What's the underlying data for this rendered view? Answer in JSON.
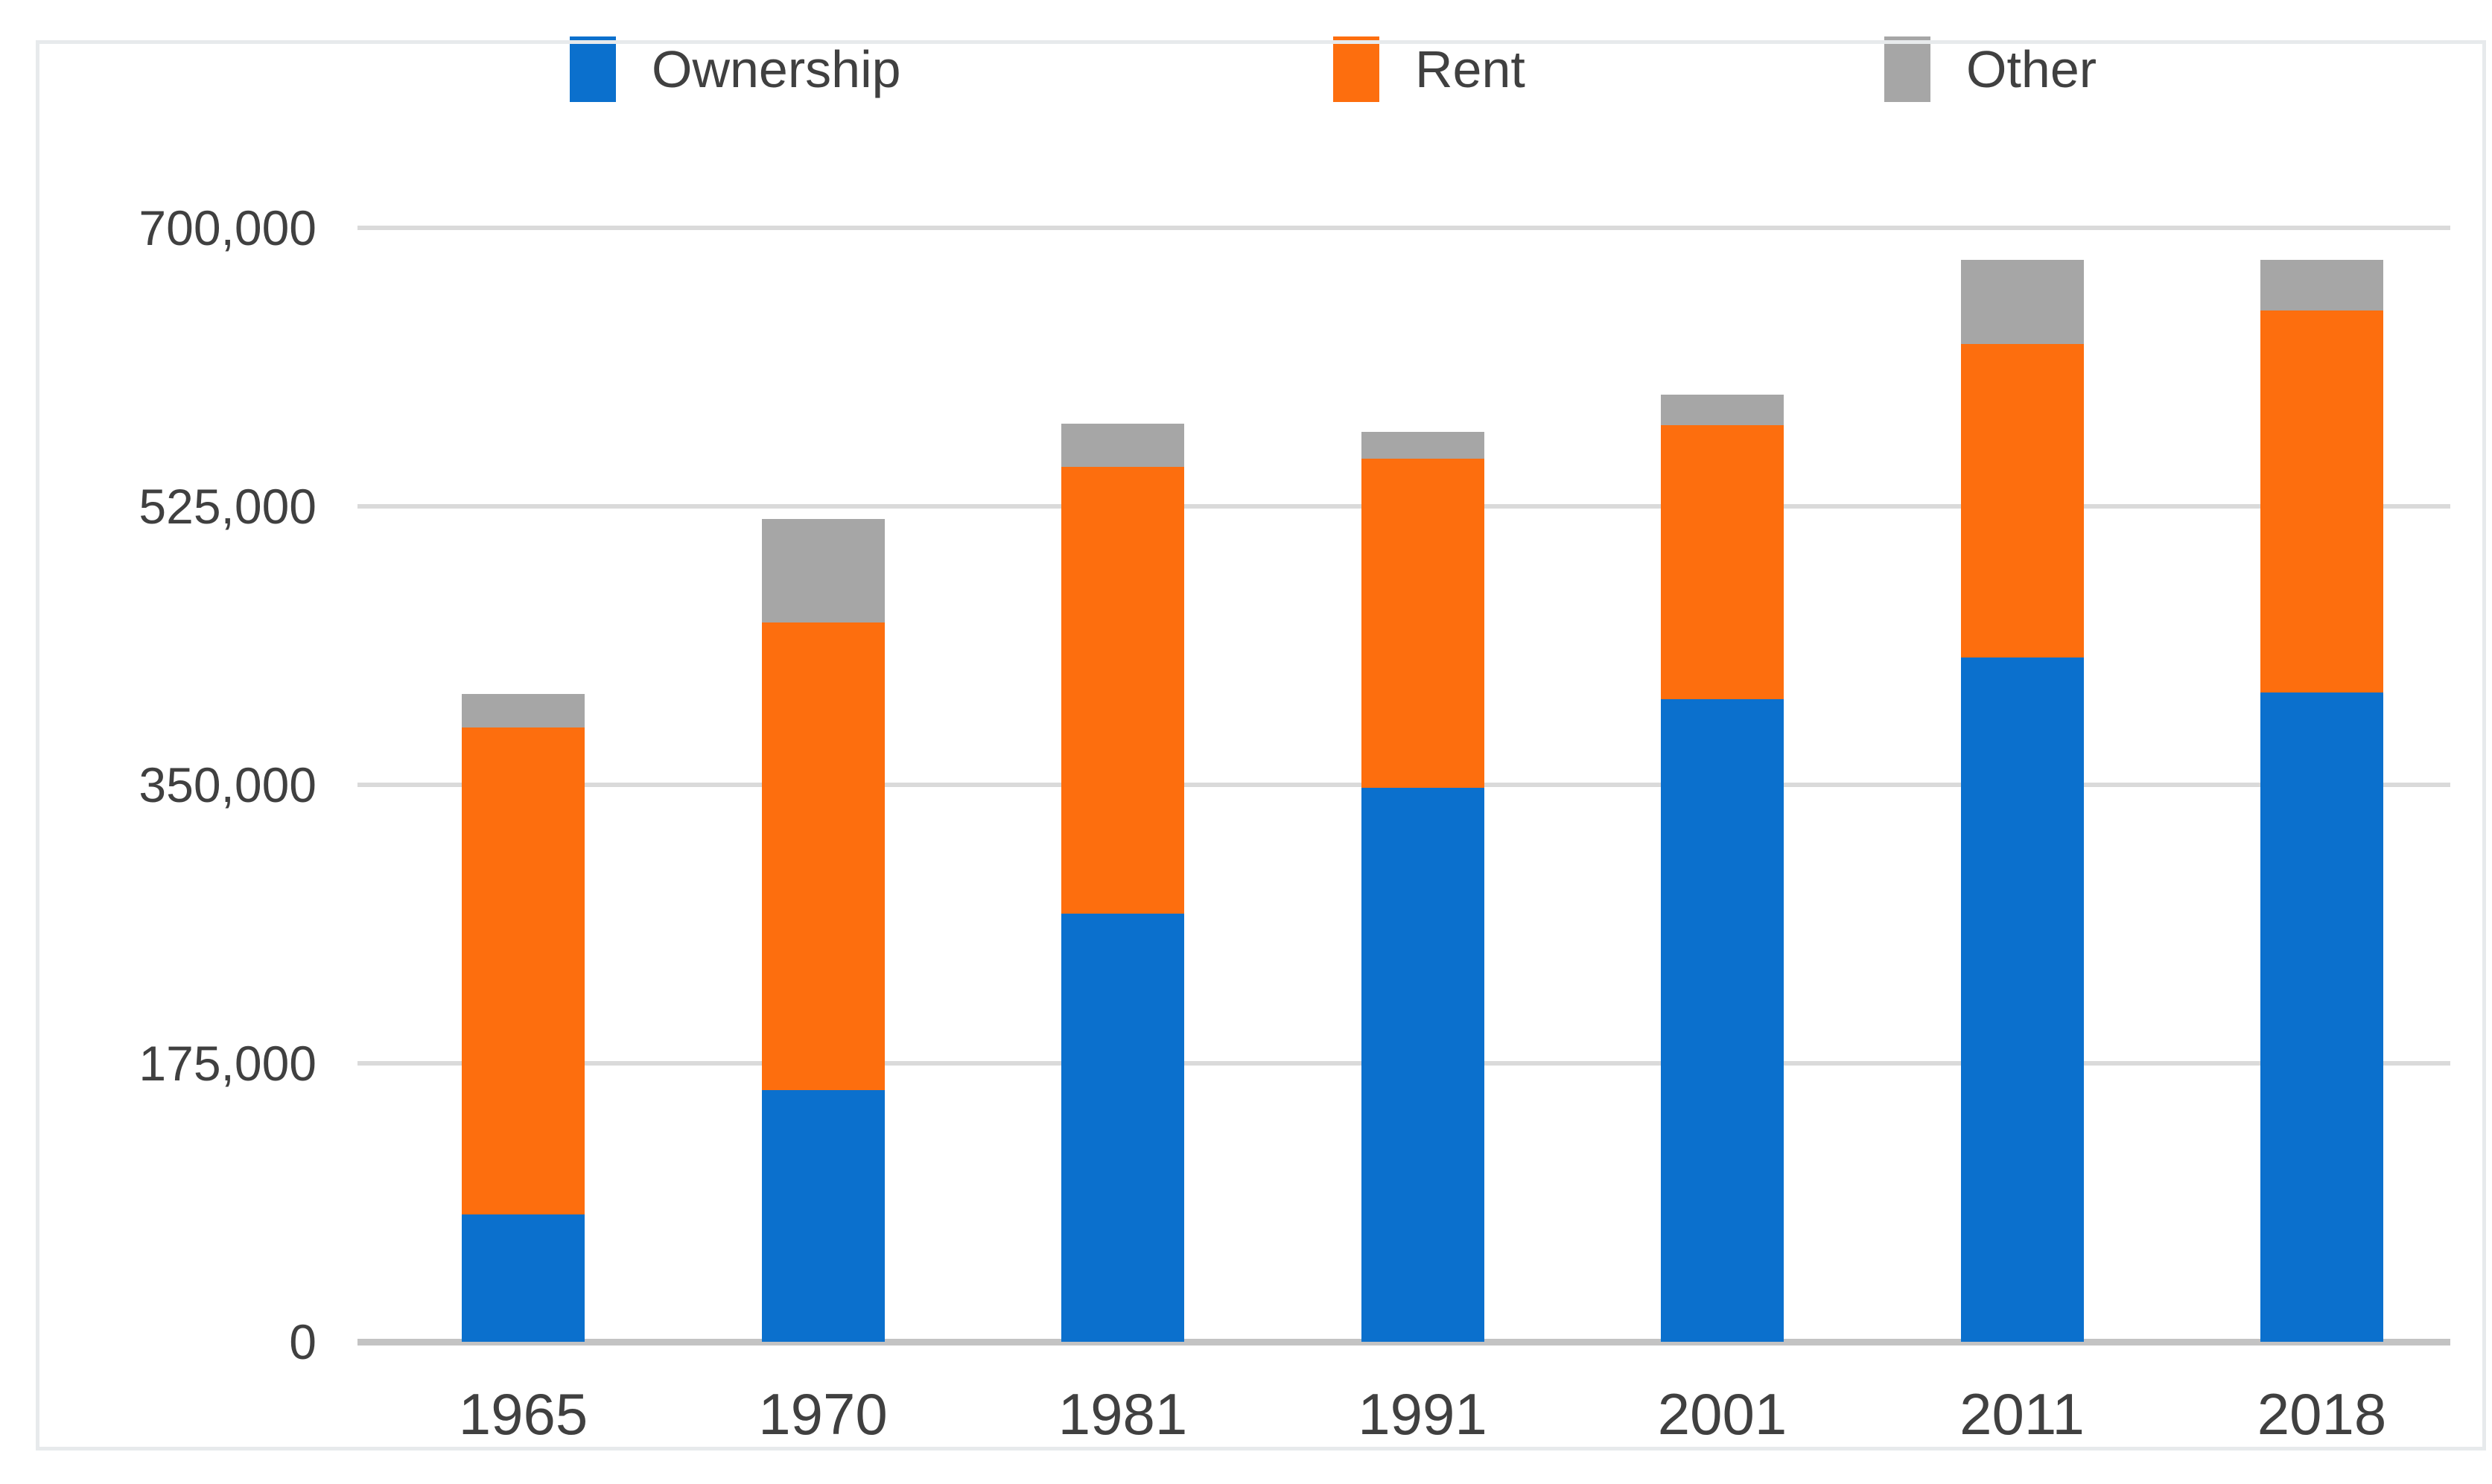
{
  "legend": {
    "items": [
      {
        "label": "Ownership",
        "color": "#0b70cd"
      },
      {
        "label": "Rent",
        "color": "#fd6e0e"
      },
      {
        "label": "Other",
        "color": "#a6a6a6"
      }
    ]
  },
  "chart_data": {
    "type": "bar",
    "stacked": true,
    "title": "",
    "xlabel": "",
    "ylabel": "",
    "categories": [
      "1965",
      "1970",
      "1981",
      "1991",
      "2001",
      "2011",
      "2018"
    ],
    "series": [
      {
        "name": "Ownership",
        "color": "#0b70cd",
        "values": [
          80000,
          158000,
          269000,
          348000,
          404000,
          430000,
          408000
        ]
      },
      {
        "name": "Rent",
        "color": "#fd6e0e",
        "values": [
          306000,
          294000,
          281000,
          207000,
          172000,
          197000,
          240000
        ]
      },
      {
        "name": "Other",
        "color": "#a6a6a6",
        "values": [
          21000,
          65000,
          27000,
          17000,
          19000,
          53000,
          32000
        ]
      }
    ],
    "totals": [
      407000,
      517000,
      577000,
      572000,
      595000,
      680000,
      680000
    ],
    "y_axis": {
      "min": 0,
      "max": 700000,
      "tick_step": 175000,
      "tick_labels": [
        "0",
        "175,000",
        "350,000",
        "525,000",
        "700,000"
      ]
    },
    "grid": "horizontal",
    "legend_position": "top",
    "colors": {
      "gridline": "#dadada",
      "baseline": "#c3c3c3",
      "text": "#404040",
      "background": "#ffffff"
    }
  }
}
